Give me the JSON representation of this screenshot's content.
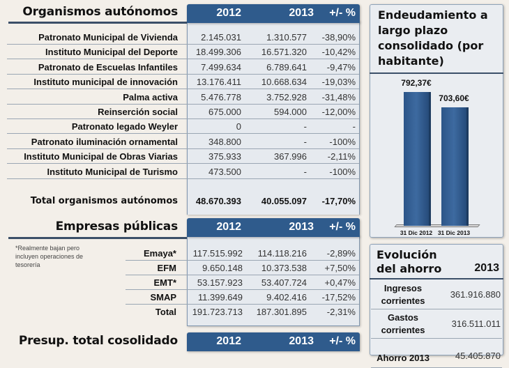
{
  "organismos": {
    "title": "Organismos autónomos",
    "headers": [
      "2012",
      "2013",
      "+/- %"
    ],
    "rows": [
      {
        "name": "Patronato Municipal de Vivienda",
        "y2012": "2.145.031",
        "y2013": "1.310.577",
        "pct": "-38,90%"
      },
      {
        "name": "Instituto Municipal del Deporte",
        "y2012": "18.499.306",
        "y2013": "16.571.320",
        "pct": "-10,42%"
      },
      {
        "name": "Patronato de Escuelas Infantiles",
        "y2012": "7.499.634",
        "y2013": "6.789.641",
        "pct": "-9,47%"
      },
      {
        "name": "Instituto municipal de innovación",
        "y2012": "13.176.411",
        "y2013": "10.668.634",
        "pct": "-19,03%"
      },
      {
        "name": "Palma activa",
        "y2012": "5.476.778",
        "y2013": "3.752.928",
        "pct": "-31,48%"
      },
      {
        "name": "Reinserción social",
        "y2012": "675.000",
        "y2013": "594.000",
        "pct": "-12,00%"
      },
      {
        "name": "Patronato legado Weyler",
        "y2012": "0",
        "y2013": "-",
        "pct": "-"
      },
      {
        "name": "Patronato iluminación ornamental",
        "y2012": "348.800",
        "y2013": "-",
        "pct": "-100%"
      },
      {
        "name": "Instituto Municipal de Obras Viarias",
        "y2012": "375.933",
        "y2013": "367.996",
        "pct": "-2,11%"
      },
      {
        "name": "Instituto Municipal de Turismo",
        "y2012": "473.500",
        "y2013": "-",
        "pct": "-100%"
      }
    ],
    "total": {
      "name": "Total organismos autónomos",
      "y2012": "48.670.393",
      "y2013": "40.055.097",
      "pct": "-17,70%"
    }
  },
  "empresas": {
    "title": "Empresas públicas",
    "headers": [
      "2012",
      "2013",
      "+/- %"
    ],
    "note": "*Realmente bajan pero incluyen operaciones de tesorería",
    "rows": [
      {
        "name": "Emaya*",
        "y2012": "117.515.992",
        "y2013": "114.118.216",
        "pct": "-2,89%"
      },
      {
        "name": "EFM",
        "y2012": "9.650.148",
        "y2013": "10.373.538",
        "pct": "+7,50%"
      },
      {
        "name": "EMT*",
        "y2012": "53.157.923",
        "y2013": "53.407.724",
        "pct": "+0,47%"
      },
      {
        "name": "SMAP",
        "y2012": "11.399.649",
        "y2013": "9.402.416",
        "pct": "-17,52%"
      },
      {
        "name": "Total",
        "y2012": "191.723.713",
        "y2013": "187.301.895",
        "pct": "-2,31%"
      }
    ]
  },
  "presupuesto": {
    "title": "Presup. total cosolidado",
    "headers": [
      "2012",
      "2013",
      "+/- %"
    ]
  },
  "chart_data": {
    "type": "bar",
    "title": "Endeudamiento a largo plazo consolidado (por habitante)",
    "categories": [
      "31 Dic 2012",
      "31 Dic 2013"
    ],
    "values": [
      792.37,
      703.6
    ],
    "labels": [
      "792,37€",
      "703,60€"
    ],
    "ylim": [
      0,
      800
    ]
  },
  "ahorro": {
    "title1": "Evolución",
    "title2": "del ahorro",
    "year": "2013",
    "rows": [
      {
        "l1": "Ingresos",
        "l2": "corrientes",
        "value": "361.916.880"
      },
      {
        "l1": "Gastos",
        "l2": "corrientes",
        "value": "316.511.011"
      },
      {
        "l1": "Ahorro 2013",
        "l2": "",
        "value": "45.405.870"
      }
    ]
  }
}
